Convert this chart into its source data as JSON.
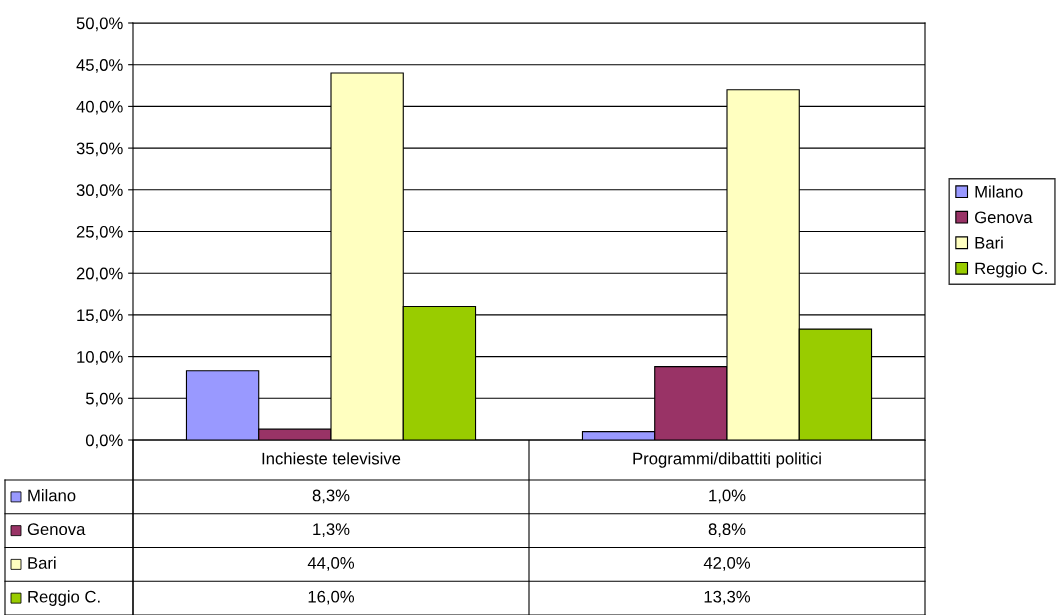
{
  "chart_data": {
    "type": "bar",
    "categories": [
      "Inchieste televisive",
      "Programmi/dibattiti politici"
    ],
    "series": [
      {
        "name": "Milano",
        "color": "#9999ff",
        "values": [
          8.3,
          1.0
        ],
        "value_labels": [
          "8,3%",
          "1,0%"
        ]
      },
      {
        "name": "Genova",
        "color": "#993366",
        "values": [
          1.3,
          8.8
        ],
        "value_labels": [
          "1,3%",
          "8,8%"
        ]
      },
      {
        "name": "Bari",
        "color": "#ffffc0",
        "values": [
          44.0,
          42.0
        ],
        "value_labels": [
          "44,0%",
          "42,0%"
        ]
      },
      {
        "name": "Reggio C.",
        "color": "#99cc00",
        "values": [
          16.0,
          13.3
        ],
        "value_labels": [
          "16,0%",
          "13,3%"
        ]
      }
    ],
    "ylim": [
      0,
      50
    ],
    "yticks": [
      {
        "value": 0,
        "label": "0,0%"
      },
      {
        "value": 5,
        "label": "5,0%"
      },
      {
        "value": 10,
        "label": "10,0%"
      },
      {
        "value": 15,
        "label": "15,0%"
      },
      {
        "value": 20,
        "label": "20,0%"
      },
      {
        "value": 25,
        "label": "25,0%"
      },
      {
        "value": 30,
        "label": "30,0%"
      },
      {
        "value": 35,
        "label": "35,0%"
      },
      {
        "value": 40,
        "label": "40,0%"
      },
      {
        "value": 45,
        "label": "45,0%"
      },
      {
        "value": 50,
        "label": "50,0%"
      }
    ],
    "grid": "y",
    "legend": "right"
  }
}
